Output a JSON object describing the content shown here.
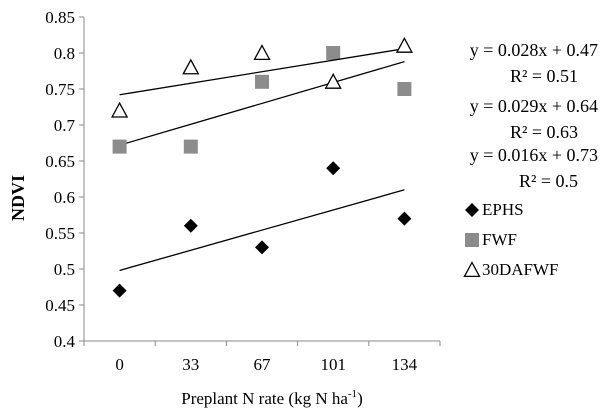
{
  "chart_data": {
    "type": "scatter",
    "title": "",
    "xlabel": "Preplant N rate (kg N ha",
    "xlabel_superscript": "-1",
    "xlabel_suffix": ")",
    "ylabel": "NDVI",
    "categories": [
      "0",
      "33",
      "67",
      "101",
      "134"
    ],
    "ylim": [
      0.4,
      0.85
    ],
    "yticks": [
      "0.4",
      "0.45",
      "0.5",
      "0.55",
      "0.6",
      "0.65",
      "0.7",
      "0.75",
      "0.8",
      "0.85"
    ],
    "grid": false,
    "legend_position": "right",
    "series": [
      {
        "name": "EPHS",
        "marker": "diamond",
        "color": "#000000",
        "values": [
          0.47,
          0.56,
          0.53,
          0.64,
          0.57
        ],
        "trendline": {
          "slope": 0.028,
          "intercept": 0.47
        },
        "equation": "y = 0.028x + 0.47",
        "r2": "R² = 0.51"
      },
      {
        "name": "FWF",
        "marker": "square",
        "color": "#8c8c8c",
        "values": [
          0.67,
          0.67,
          0.76,
          0.8,
          0.75
        ],
        "trendline": {
          "slope": 0.029,
          "intercept": 0.64
        },
        "equation": "y = 0.029x + 0.64",
        "r2": "R² = 0.63"
      },
      {
        "name": "30DAFWF",
        "marker": "triangle-open",
        "color": "#000000",
        "values": [
          0.72,
          0.78,
          0.8,
          0.76,
          0.81
        ],
        "trendline": {
          "slope": 0.016,
          "intercept": 0.73
        },
        "equation": "y = 0.016x + 0.73",
        "r2": "R² = 0.5"
      }
    ]
  }
}
